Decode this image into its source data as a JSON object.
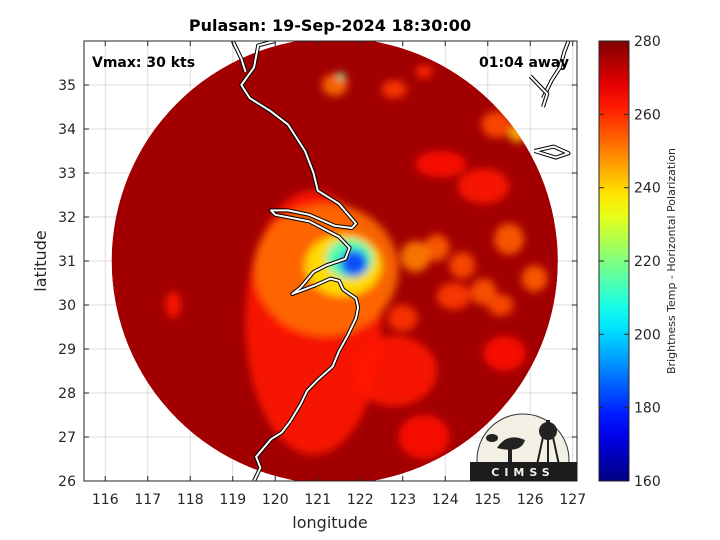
{
  "chart_data": {
    "type": "heatmap",
    "title": "Pulasan: 19-Sep-2024 18:30:00",
    "xlabel": "longitude",
    "ylabel": "latitude",
    "xlim": [
      115.5,
      127.1
    ],
    "ylim": [
      26,
      36
    ],
    "xticks": [
      116,
      117,
      118,
      119,
      120,
      121,
      122,
      123,
      124,
      125,
      126,
      127
    ],
    "yticks": [
      26,
      27,
      28,
      29,
      30,
      31,
      32,
      33,
      34,
      35
    ],
    "grid": true,
    "annotations": {
      "vmax": "Vmax: 30 kts",
      "time_away": "01:04 away"
    },
    "colorbar": {
      "label": "Brightness Temp - Horizontal Polarization",
      "range": [
        160,
        280
      ],
      "ticks": [
        160,
        180,
        200,
        220,
        240,
        260,
        280
      ]
    },
    "swath": {
      "center_lon": 121.4,
      "center_lat": 31.0,
      "radius_deg_lon": 5.25,
      "background_tb": 276
    },
    "features": [
      {
        "lon": 121.85,
        "lat": 30.95,
        "tb": 182,
        "sx": 0.32,
        "sy": 0.3
      },
      {
        "lon": 121.75,
        "lat": 31.05,
        "tb": 212,
        "sx": 0.55,
        "sy": 0.45
      },
      {
        "lon": 121.6,
        "lat": 30.9,
        "tb": 238,
        "sx": 0.9,
        "sy": 0.7
      },
      {
        "lon": 121.2,
        "lat": 30.8,
        "tb": 252,
        "sx": 1.7,
        "sy": 1.5
      },
      {
        "lon": 120.9,
        "lat": 29.6,
        "tb": 262,
        "sx": 1.6,
        "sy": 3.0
      },
      {
        "lon": 123.3,
        "lat": 31.1,
        "tb": 250,
        "sx": 0.35,
        "sy": 0.35
      },
      {
        "lon": 123.8,
        "lat": 31.3,
        "tb": 254,
        "sx": 0.3,
        "sy": 0.3
      },
      {
        "lon": 124.4,
        "lat": 30.9,
        "tb": 256,
        "sx": 0.3,
        "sy": 0.3
      },
      {
        "lon": 124.9,
        "lat": 30.3,
        "tb": 255,
        "sx": 0.3,
        "sy": 0.3
      },
      {
        "lon": 125.5,
        "lat": 31.5,
        "tb": 254,
        "sx": 0.35,
        "sy": 0.35
      },
      {
        "lon": 126.1,
        "lat": 30.6,
        "tb": 254,
        "sx": 0.3,
        "sy": 0.3
      },
      {
        "lon": 125.3,
        "lat": 30.0,
        "tb": 256,
        "sx": 0.3,
        "sy": 0.25
      },
      {
        "lon": 124.2,
        "lat": 30.2,
        "tb": 258,
        "sx": 0.4,
        "sy": 0.3
      },
      {
        "lon": 125.7,
        "lat": 33.9,
        "tb": 244,
        "sx": 0.22,
        "sy": 0.2
      },
      {
        "lon": 125.2,
        "lat": 34.1,
        "tb": 256,
        "sx": 0.35,
        "sy": 0.3
      },
      {
        "lon": 121.55,
        "lat": 35.2,
        "tb": 215,
        "sx": 0.1,
        "sy": 0.08
      },
      {
        "lon": 121.4,
        "lat": 35.0,
        "tb": 252,
        "sx": 0.3,
        "sy": 0.25
      },
      {
        "lon": 122.8,
        "lat": 34.9,
        "tb": 258,
        "sx": 0.3,
        "sy": 0.2
      },
      {
        "lon": 123.5,
        "lat": 35.3,
        "tb": 260,
        "sx": 0.2,
        "sy": 0.15
      },
      {
        "lon": 124.9,
        "lat": 32.7,
        "tb": 262,
        "sx": 0.6,
        "sy": 0.4
      },
      {
        "lon": 123.9,
        "lat": 33.2,
        "tb": 263,
        "sx": 0.6,
        "sy": 0.3
      },
      {
        "lon": 122.8,
        "lat": 28.5,
        "tb": 262,
        "sx": 1.0,
        "sy": 0.8
      },
      {
        "lon": 123.5,
        "lat": 27.0,
        "tb": 263,
        "sx": 0.6,
        "sy": 0.5
      },
      {
        "lon": 117.6,
        "lat": 30.0,
        "tb": 262,
        "sx": 0.18,
        "sy": 0.3
      },
      {
        "lon": 120.3,
        "lat": 29.6,
        "tb": 262,
        "sx": 0.25,
        "sy": 0.3
      },
      {
        "lon": 123.0,
        "lat": 29.7,
        "tb": 259,
        "sx": 0.35,
        "sy": 0.3
      },
      {
        "lon": 125.4,
        "lat": 28.9,
        "tb": 264,
        "sx": 0.5,
        "sy": 0.4
      }
    ],
    "coastlines": [
      [
        [
          119.5,
          26.0
        ],
        [
          119.65,
          26.3
        ],
        [
          119.55,
          26.55
        ],
        [
          119.9,
          26.95
        ],
        [
          120.15,
          27.1
        ],
        [
          120.35,
          27.35
        ],
        [
          120.6,
          27.75
        ],
        [
          120.75,
          28.05
        ],
        [
          121.0,
          28.3
        ],
        [
          121.35,
          28.6
        ],
        [
          121.5,
          28.95
        ],
        [
          121.7,
          29.3
        ],
        [
          121.9,
          29.7
        ],
        [
          121.95,
          29.95
        ],
        [
          121.9,
          30.15
        ],
        [
          121.6,
          30.35
        ],
        [
          121.5,
          30.55
        ],
        [
          121.3,
          30.6
        ],
        [
          120.95,
          30.45
        ],
        [
          120.4,
          30.25
        ],
        [
          120.6,
          30.4
        ],
        [
          120.9,
          30.75
        ],
        [
          121.2,
          30.9
        ],
        [
          121.65,
          31.05
        ],
        [
          121.75,
          31.3
        ],
        [
          121.5,
          31.55
        ],
        [
          121.1,
          31.75
        ],
        [
          120.8,
          31.9
        ],
        [
          120.0,
          32.05
        ],
        [
          119.9,
          32.15
        ],
        [
          120.3,
          32.15
        ],
        [
          120.8,
          32.05
        ],
        [
          121.4,
          31.8
        ],
        [
          121.8,
          31.75
        ],
        [
          121.9,
          31.85
        ],
        [
          121.5,
          32.3
        ],
        [
          121.0,
          32.6
        ],
        [
          120.9,
          33.0
        ],
        [
          120.7,
          33.5
        ],
        [
          120.3,
          34.1
        ],
        [
          119.9,
          34.4
        ],
        [
          119.4,
          34.7
        ],
        [
          119.2,
          35.0
        ],
        [
          119.5,
          35.4
        ],
        [
          119.6,
          35.9
        ],
        [
          120.0,
          36.0
        ]
      ],
      [
        [
          119.0,
          36.0
        ],
        [
          119.2,
          35.6
        ],
        [
          119.3,
          35.3
        ]
      ],
      [
        [
          126.3,
          34.7
        ],
        [
          126.5,
          35.1
        ],
        [
          126.7,
          35.4
        ],
        [
          126.8,
          35.75
        ],
        [
          126.9,
          36.0
        ]
      ],
      [
        [
          126.0,
          35.2
        ],
        [
          126.4,
          34.8
        ],
        [
          126.3,
          34.5
        ]
      ],
      [
        [
          126.1,
          33.5
        ],
        [
          126.6,
          33.35
        ],
        [
          126.9,
          33.45
        ],
        [
          126.55,
          33.6
        ],
        [
          126.1,
          33.5
        ]
      ]
    ]
  },
  "logo": {
    "text": "CIMSS"
  }
}
